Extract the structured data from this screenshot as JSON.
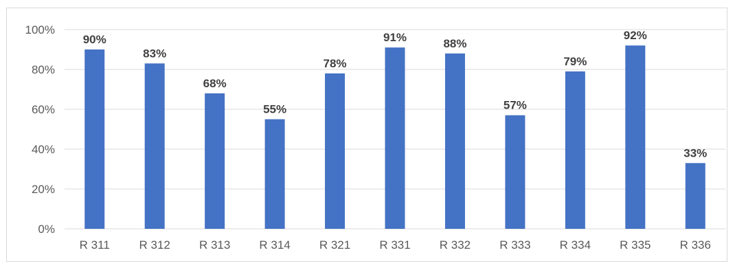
{
  "chart_data": {
    "type": "bar",
    "categories": [
      "R 311",
      "R 312",
      "R 313",
      "R 314",
      "R 321",
      "R 331",
      "R 332",
      "R 333",
      "R 334",
      "R 335",
      "R 336"
    ],
    "values": [
      90,
      83,
      68,
      55,
      78,
      91,
      88,
      57,
      79,
      92,
      33
    ],
    "data_labels": [
      "90%",
      "83%",
      "68%",
      "55%",
      "78%",
      "91%",
      "88%",
      "57%",
      "79%",
      "92%",
      "33%"
    ],
    "y_ticks": [
      "0%",
      "20%",
      "40%",
      "60%",
      "80%",
      "100%"
    ],
    "y_tick_values": [
      0,
      20,
      40,
      60,
      80,
      100
    ],
    "ylim": [
      0,
      100
    ],
    "grid": true,
    "legend": "none",
    "bar_color": "#4472c4"
  }
}
